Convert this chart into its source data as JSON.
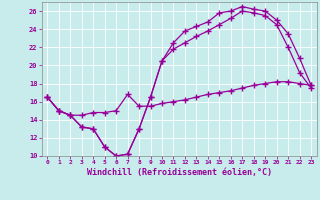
{
  "title": "",
  "xlabel": "Windchill (Refroidissement éolien,°C)",
  "ylabel": "",
  "bg_color": "#c8ecec",
  "line_color": "#990099",
  "marker": "+",
  "markersize": 4,
  "linewidth": 0.9,
  "xlim": [
    -0.5,
    23.5
  ],
  "ylim": [
    10,
    27
  ],
  "yticks": [
    10,
    12,
    14,
    16,
    18,
    20,
    22,
    24,
    26
  ],
  "xticks": [
    0,
    1,
    2,
    3,
    4,
    5,
    6,
    7,
    8,
    9,
    10,
    11,
    12,
    13,
    14,
    15,
    16,
    17,
    18,
    19,
    20,
    21,
    22,
    23
  ],
  "series1_x": [
    0,
    1,
    2,
    3,
    4,
    5,
    6,
    7,
    8,
    9,
    10,
    11,
    12,
    13,
    14,
    15,
    16,
    17,
    18,
    19,
    20,
    21,
    22,
    23
  ],
  "series1_y": [
    16.5,
    15.0,
    14.5,
    13.2,
    13.0,
    11.0,
    10.0,
    10.2,
    13.0,
    16.5,
    20.5,
    22.5,
    23.8,
    24.3,
    24.8,
    25.8,
    26.0,
    26.5,
    26.2,
    26.0,
    25.0,
    23.5,
    20.8,
    17.8
  ],
  "series2_x": [
    0,
    1,
    2,
    3,
    4,
    5,
    6,
    7,
    8,
    9,
    10,
    11,
    12,
    13,
    14,
    15,
    16,
    17,
    18,
    19,
    20,
    21,
    22,
    23
  ],
  "series2_y": [
    16.5,
    15.0,
    14.5,
    13.2,
    13.0,
    11.0,
    10.0,
    10.2,
    13.0,
    16.5,
    20.5,
    21.8,
    22.5,
    23.2,
    23.8,
    24.5,
    25.2,
    26.0,
    25.8,
    25.5,
    24.5,
    22.0,
    19.2,
    17.5
  ],
  "series3_x": [
    0,
    1,
    2,
    3,
    4,
    5,
    6,
    7,
    8,
    9,
    10,
    11,
    12,
    13,
    14,
    15,
    16,
    17,
    18,
    19,
    20,
    21,
    22,
    23
  ],
  "series3_y": [
    16.5,
    15.0,
    14.5,
    14.5,
    14.8,
    14.8,
    15.0,
    16.8,
    15.5,
    15.5,
    15.8,
    16.0,
    16.2,
    16.5,
    16.8,
    17.0,
    17.2,
    17.5,
    17.8,
    18.0,
    18.2,
    18.2,
    18.0,
    17.8
  ]
}
